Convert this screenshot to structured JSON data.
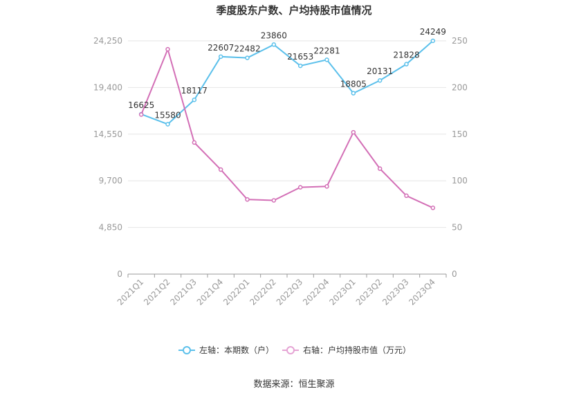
{
  "chart_data": {
    "type": "line",
    "title": "季度股东户数、户均持股市值情况",
    "categories": [
      "2021Q1",
      "2021Q2",
      "2021Q3",
      "2021Q4",
      "2022Q1",
      "2022Q2",
      "2022Q3",
      "2022Q4",
      "2023Q1",
      "2023Q2",
      "2023Q3",
      "2023Q4"
    ],
    "left_axis": {
      "ticks": [
        "0",
        "4,850",
        "9,700",
        "14,550",
        "19,400",
        "24,250"
      ],
      "tick_values": [
        0,
        4850,
        9700,
        14550,
        19400,
        24250
      ],
      "range": [
        0,
        24250
      ]
    },
    "right_axis": {
      "ticks": [
        "0",
        "50",
        "100",
        "150",
        "200",
        "250"
      ],
      "tick_values": [
        0,
        50,
        100,
        150,
        200,
        250
      ],
      "range": [
        0,
        250
      ]
    },
    "series": [
      {
        "name": "左轴：本期数（户）",
        "axis": "left",
        "color": "#5bc0eb",
        "values": [
          16625,
          15580,
          18117,
          22607,
          22482,
          23860,
          21653,
          22281,
          18805,
          20131,
          21828,
          24249
        ],
        "labels": [
          "16625",
          "15580",
          "18117",
          "22607",
          "22482",
          "23860",
          "21653",
          "22281",
          "18805",
          "20131",
          "21828",
          "24249"
        ]
      },
      {
        "name": "右轴：户均持股市值（万元）",
        "axis": "right",
        "color": "#d36fb6",
        "values": [
          171,
          241,
          141,
          112,
          80,
          79,
          93,
          94,
          152,
          113,
          84,
          71
        ]
      }
    ],
    "grid": true,
    "legend_position": "bottom-center"
  },
  "source": "数据来源：恒生聚源"
}
